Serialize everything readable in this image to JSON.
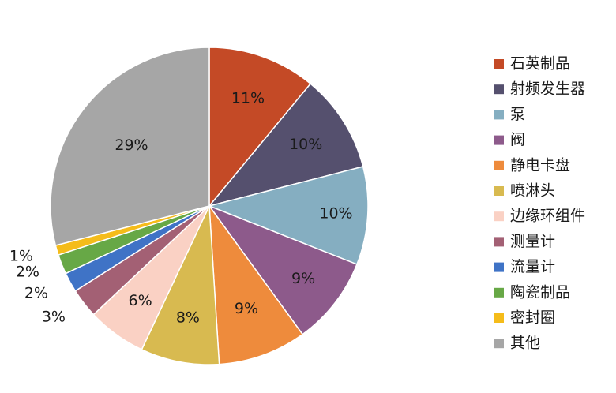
{
  "chart_data": {
    "type": "pie",
    "categories": [
      "石英制品",
      "射频发生器",
      "泵",
      "阀",
      "静电卡盘",
      "喷淋头",
      "边缘环组件",
      "测量计",
      "流量计",
      "陶瓷制品",
      "密封圈",
      "其他"
    ],
    "values": [
      11,
      10,
      10,
      9,
      9,
      8,
      6,
      3,
      2,
      2,
      1,
      29
    ],
    "labels": [
      "11%",
      "10%",
      "10%",
      "9%",
      "9%",
      "8%",
      "6%",
      "3%",
      "2%",
      "2%",
      "1%",
      "29%"
    ],
    "colors": [
      "#C44A26",
      "#55506E",
      "#85AEC1",
      "#8D5A8B",
      "#EE8B3C",
      "#D8BA50",
      "#FAD1C4",
      "#A36074",
      "#3F73C6",
      "#67A846",
      "#F5BC1A",
      "#A6A6A6"
    ],
    "start_angle_deg": 0,
    "direction": "clockwise",
    "legend_position": "right"
  }
}
